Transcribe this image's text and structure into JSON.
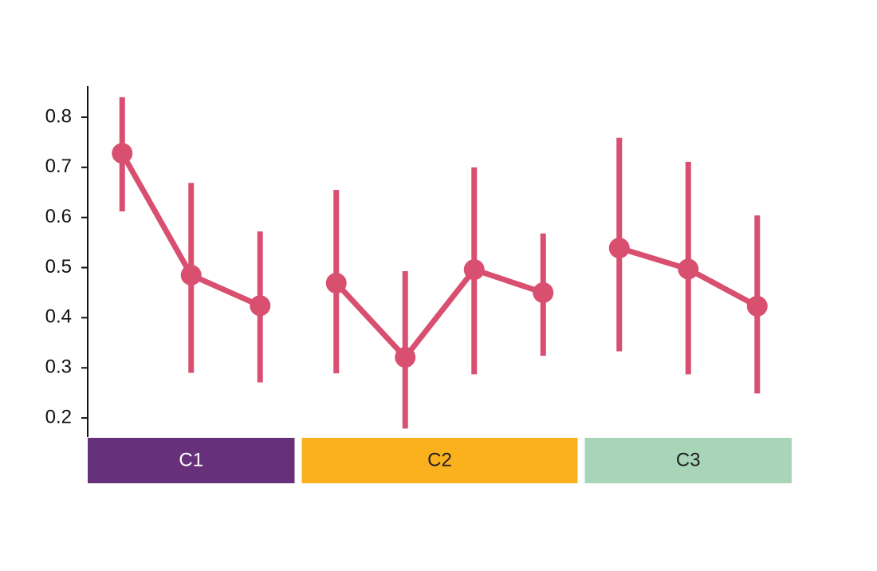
{
  "chart_data": {
    "type": "pointplot",
    "color": "#d94f70",
    "ylim": [
      0.162,
      0.862
    ],
    "yticks": [
      0.2,
      0.3,
      0.4,
      0.5,
      0.6,
      0.7,
      0.8
    ],
    "groups": [
      {
        "name": "C1",
        "color": "#66317a",
        "label_color": "#ffffff",
        "values": [
          0.728,
          0.485,
          0.424
        ],
        "lower": [
          0.612,
          0.29,
          0.271
        ],
        "upper": [
          0.84,
          0.669,
          0.572
        ]
      },
      {
        "name": "C2",
        "color": "#fbb01e",
        "label_color": "#222222",
        "values": [
          0.469,
          0.321,
          0.496,
          0.45
        ],
        "lower": [
          0.289,
          0.179,
          0.287,
          0.324
        ],
        "upper": [
          0.655,
          0.493,
          0.7,
          0.568
        ]
      },
      {
        "name": "C3",
        "color": "#a8d5b8",
        "label_color": "#222222",
        "values": [
          0.539,
          0.497,
          0.423
        ],
        "lower": [
          0.333,
          0.287,
          0.249
        ],
        "upper": [
          0.759,
          0.711,
          0.604
        ]
      }
    ]
  }
}
